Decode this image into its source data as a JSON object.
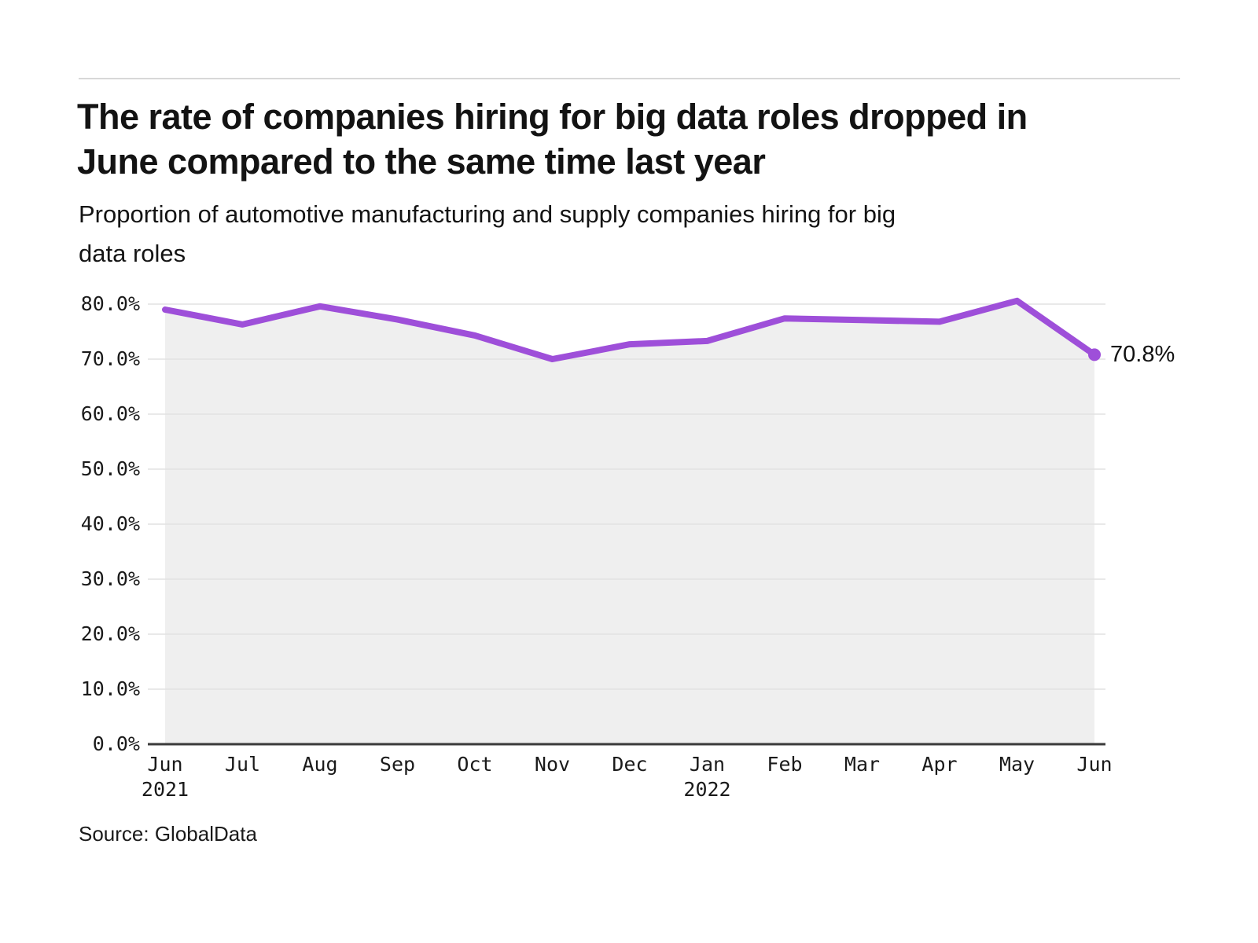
{
  "header": {
    "title": "The rate of companies hiring for big data roles dropped in\nJune compared to the same time last year",
    "subtitle": "Proportion of automotive manufacturing and supply companies hiring for big\ndata roles"
  },
  "footer": {
    "source": "Source: GlobalData"
  },
  "chart_data": {
    "type": "area",
    "title": "The rate of companies hiring for big data roles dropped in June compared to the same time last year",
    "subtitle": "Proportion of automotive manufacturing and supply companies hiring for big data roles",
    "source": "Source: GlobalData",
    "categories": [
      "Jun",
      "Jul",
      "Aug",
      "Sep",
      "Oct",
      "Nov",
      "Dec",
      "Jan",
      "Feb",
      "Mar",
      "Apr",
      "May",
      "Jun"
    ],
    "category_years": [
      {
        "index": 0,
        "year": "2021"
      },
      {
        "index": 7,
        "year": "2022"
      }
    ],
    "values": [
      79.0,
      76.3,
      79.6,
      77.2,
      74.3,
      70.0,
      72.7,
      73.3,
      77.4,
      77.1,
      76.8,
      80.6,
      70.8
    ],
    "unit": "%",
    "end_label": "70.8%",
    "ylim": [
      0,
      80
    ],
    "y_tick_step": 10,
    "y_tick_labels": [
      "0.0%",
      "10.0%",
      "20.0%",
      "30.0%",
      "40.0%",
      "50.0%",
      "60.0%",
      "70.0%",
      "80.0%"
    ],
    "grid": true,
    "legend": "none",
    "colors": {
      "line": "#9e4fd9",
      "area": "#efefef",
      "grid": "#e2e2e2",
      "axis": "#3a3a3a",
      "text": "#141414",
      "rule": "#d8d8d8"
    }
  }
}
